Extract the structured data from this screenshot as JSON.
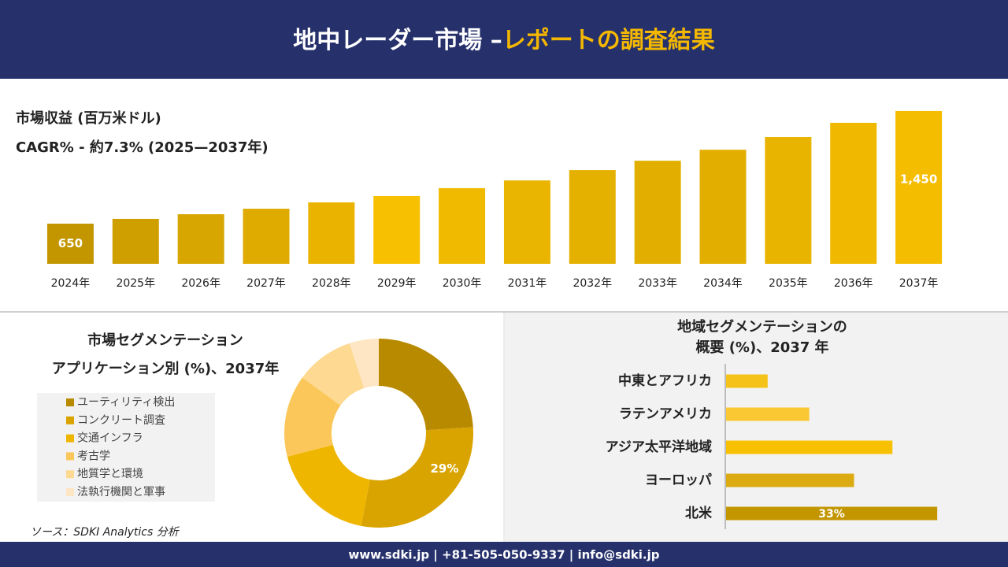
{
  "header": {
    "title_main": "地中レーダー市場 –",
    "title_accent": "レポートの調査結果"
  },
  "chart_data": [
    {
      "type": "bar",
      "title": "市場収益 (百万米ドル)",
      "subtitle": "CAGR% - 約7.3% (2025—2037年)",
      "categories": [
        "2024年",
        "2025年",
        "2026年",
        "2027年",
        "2028年",
        "2029年",
        "2030年",
        "2031年",
        "2032年",
        "2033年",
        "2034年",
        "2035年",
        "2036年",
        "2037年"
      ],
      "values": [
        650,
        684,
        717,
        756,
        801,
        846,
        902,
        957,
        1030,
        1097,
        1175,
        1265,
        1366,
        1450
      ],
      "value_labels": [
        "650",
        null,
        null,
        null,
        null,
        null,
        null,
        null,
        null,
        null,
        null,
        null,
        null,
        "1,450"
      ],
      "colors": [
        "#c39600",
        "#cf9f00",
        "#d7a600",
        "#dfab00",
        "#e9b300",
        "#f7c000",
        "#f0ba00",
        "#eab500",
        "#e5b100",
        "#e2af00",
        "#e2af00",
        "#e8b400",
        "#f0b900",
        "#f5bd00"
      ],
      "ylim": [
        365,
        1500
      ]
    },
    {
      "type": "pie",
      "title": "市場セグメンテーション",
      "subtitle": "アプリケーション別 (%)、2037年",
      "categories": [
        "ユーティリティ検出",
        "コンクリート調査",
        "交通インフラ",
        "考古学",
        "地質学と環境",
        "法執行機関と軍事"
      ],
      "values": [
        24,
        29,
        18,
        14,
        10,
        5
      ],
      "value_labels": [
        null,
        "29%",
        null,
        null,
        null,
        null
      ],
      "colors": [
        "#b88a00",
        "#d9a400",
        "#efb600",
        "#fcc75a",
        "#fdd992",
        "#fee6c4"
      ],
      "hole": 0.5
    },
    {
      "type": "barh",
      "title": "地域セグメンテーションの",
      "subtitle": "概要 (%)、2037 年",
      "categories": [
        "中東とアフリカ",
        "ラテンアメリカ",
        "アジア太平洋地域",
        "ヨーロッパ",
        "北米"
      ],
      "values": [
        6.5,
        13,
        26,
        20,
        33
      ],
      "value_labels": [
        null,
        null,
        null,
        null,
        "33%"
      ],
      "colors": [
        "#f5c21a",
        "#fac832",
        "#f7c000",
        "#dcab12",
        "#c39600"
      ],
      "xlim": [
        0,
        40
      ]
    }
  ],
  "source": "ソース：SDKI Analytics 分析",
  "footer": "www.sdki.jp | +81-505-050-9337 | info@sdki.jp"
}
